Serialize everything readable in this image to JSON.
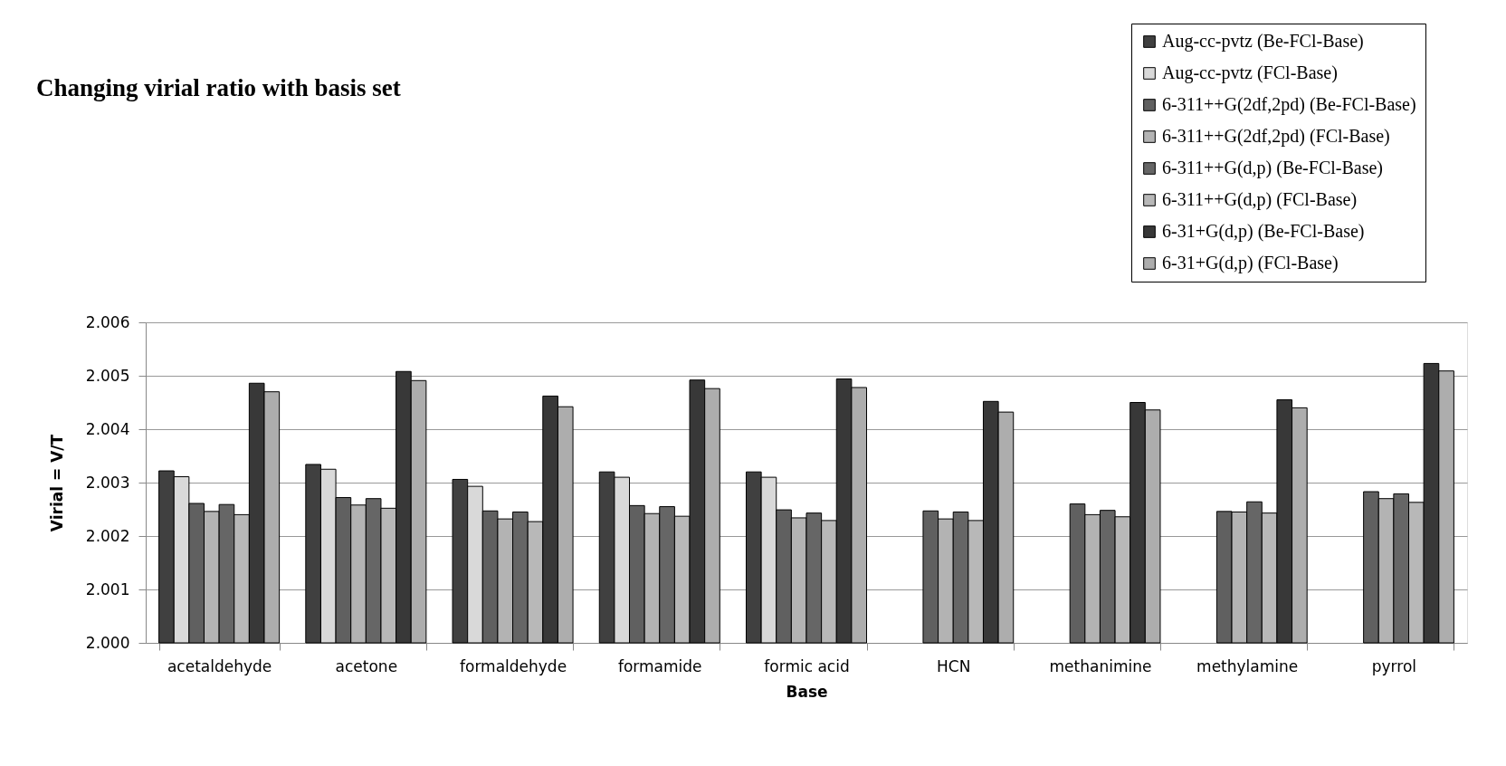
{
  "chart_data": {
    "type": "bar",
    "title": "Changing virial ratio with basis set",
    "xlabel": "Base",
    "ylabel": "Virial = V/T",
    "categories": [
      "acetaldehyde",
      "acetone",
      "formaldehyde",
      "formamide",
      "formic acid",
      "HCN",
      "methanimine",
      "methylamine",
      "pyrrol"
    ],
    "series": [
      {
        "name": "Aug-cc-pvtz (Be-FCl-Base)",
        "color": "#404040",
        "values": [
          2.00322,
          2.00334,
          2.00306,
          2.0032,
          2.0032,
          null,
          null,
          null,
          null
        ]
      },
      {
        "name": "Aug-cc-pvtz (FCl-Base)",
        "color": "#d9d9d9",
        "values": [
          2.00311,
          2.00325,
          2.00293,
          2.0031,
          2.0031,
          null,
          null,
          null,
          null
        ]
      },
      {
        "name": "6-311++G(2df,2pd) (Be-FCl-Base)",
        "color": "#606060",
        "values": [
          2.00261,
          2.00272,
          2.00247,
          2.00257,
          2.00249,
          2.00247,
          2.0026,
          2.00246,
          2.00283
        ]
      },
      {
        "name": "6-311++G(2df,2pd) (FCl-Base)",
        "color": "#b3b3b3",
        "values": [
          2.00246,
          2.00258,
          2.00232,
          2.00242,
          2.00234,
          2.00232,
          2.0024,
          2.00245,
          2.0027
        ]
      },
      {
        "name": "6-311++G(d,p) (Be-FCl-Base)",
        "color": "#666666",
        "values": [
          2.00259,
          2.0027,
          2.00245,
          2.00255,
          2.00243,
          2.00245,
          2.00248,
          2.00264,
          2.00279
        ]
      },
      {
        "name": "6-311++G(d,p) (FCl-Base)",
        "color": "#b8b8b8",
        "values": [
          2.0024,
          2.00252,
          2.00227,
          2.00237,
          2.00229,
          2.00229,
          2.00236,
          2.00243,
          2.00263
        ]
      },
      {
        "name": "6-31+G(d,p) (Be-FCl-Base)",
        "color": "#383838",
        "values": [
          2.00486,
          2.00508,
          2.00462,
          2.00492,
          2.00494,
          2.00452,
          2.0045,
          2.00455,
          2.00523
        ]
      },
      {
        "name": "6-31+G(d,p) (FCl-Base)",
        "color": "#adadad",
        "values": [
          2.0047,
          2.00491,
          2.00442,
          2.00476,
          2.00478,
          2.00432,
          2.00436,
          2.0044,
          2.00509
        ]
      }
    ],
    "ylim": [
      2.0,
      2.006
    ],
    "yticks": [
      {
        "value": 2.0,
        "label": "2.000"
      },
      2.001,
      2.002,
      2.003,
      2.004,
      2.005,
      2.006
    ],
    "grid": "y",
    "legend": "top right"
  }
}
